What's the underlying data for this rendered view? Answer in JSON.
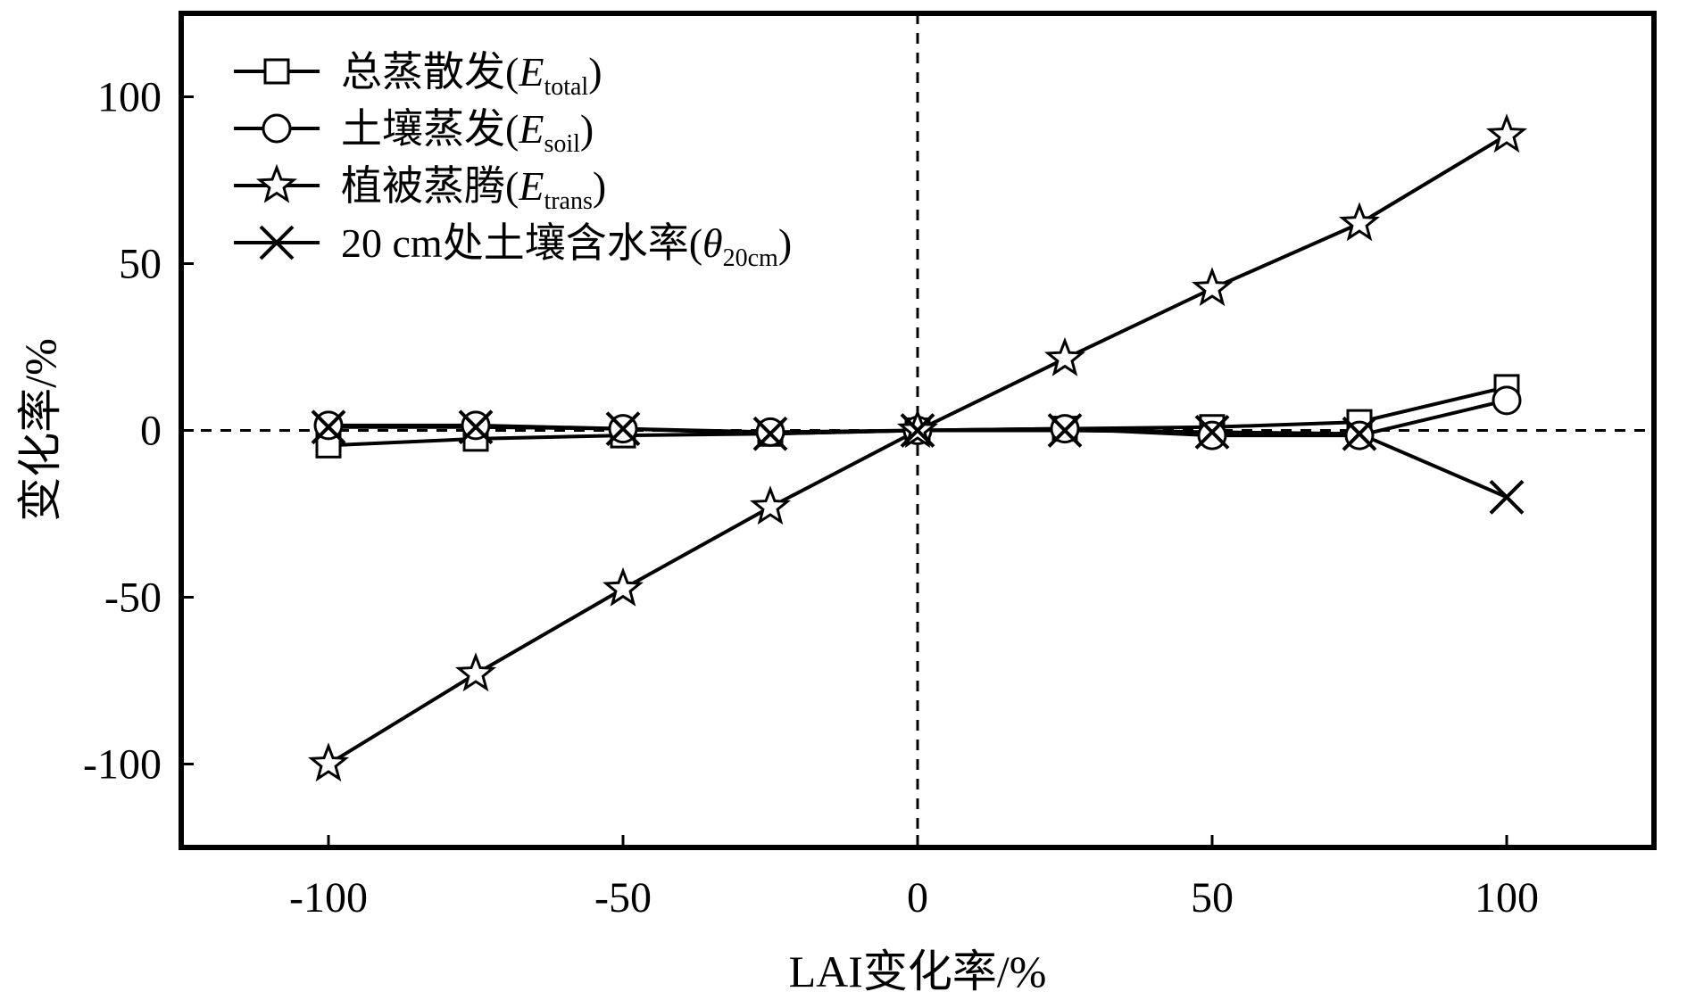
{
  "chart_data": {
    "type": "line",
    "xlabel": "LAI变化率/%",
    "ylabel": "变化率/%",
    "xlim": [
      -125,
      125
    ],
    "ylim": [
      -125,
      125
    ],
    "x_ticks": [
      -100,
      -50,
      0,
      50,
      100
    ],
    "y_ticks": [
      -100,
      -50,
      0,
      50,
      100
    ],
    "x_tick_labels": [
      "-100",
      "-50",
      "0",
      "50",
      "100"
    ],
    "y_tick_labels": [
      "-100",
      "-50",
      "0",
      "50",
      "100"
    ],
    "reference_lines": {
      "x": 0,
      "y": 0,
      "style": "dashed"
    },
    "legend_position": "top-left",
    "x": [
      -100,
      -75,
      -50,
      -25,
      0,
      25,
      50,
      75,
      100
    ],
    "series": [
      {
        "name": "总蒸散发(E_total)",
        "legend_main": "总蒸散发(",
        "legend_var": "E",
        "legend_sub": "total",
        "legend_close": ")",
        "marker": "square",
        "values": [
          -4.5,
          -2.5,
          -1.5,
          -1,
          0,
          0.5,
          1,
          2.5,
          13
        ]
      },
      {
        "name": "土壤蒸发(E_soil)",
        "legend_main": "土壤蒸发(",
        "legend_var": "E",
        "legend_sub": "soil",
        "legend_close": ")",
        "marker": "circle",
        "values": [
          1.5,
          1.5,
          0.5,
          -0.5,
          0,
          0.5,
          -1.5,
          -1.5,
          9
        ]
      },
      {
        "name": "植被蒸腾(E_trans)",
        "legend_main": "植被蒸腾(",
        "legend_var": "E",
        "legend_sub": "trans",
        "legend_close": ")",
        "marker": "star",
        "values": [
          -100,
          -73,
          -47.5,
          -23,
          0,
          21.5,
          42.5,
          62,
          88.5
        ]
      },
      {
        "name": "20 cm处土壤含水率(θ_20cm)",
        "legend_main": "20 cm处土壤含水率(",
        "legend_var": "θ",
        "legend_sub": "20cm",
        "legend_close": ")",
        "marker": "x",
        "values": [
          1,
          1,
          0.5,
          -1,
          0,
          0,
          -0.5,
          -1,
          -20
        ]
      }
    ]
  }
}
